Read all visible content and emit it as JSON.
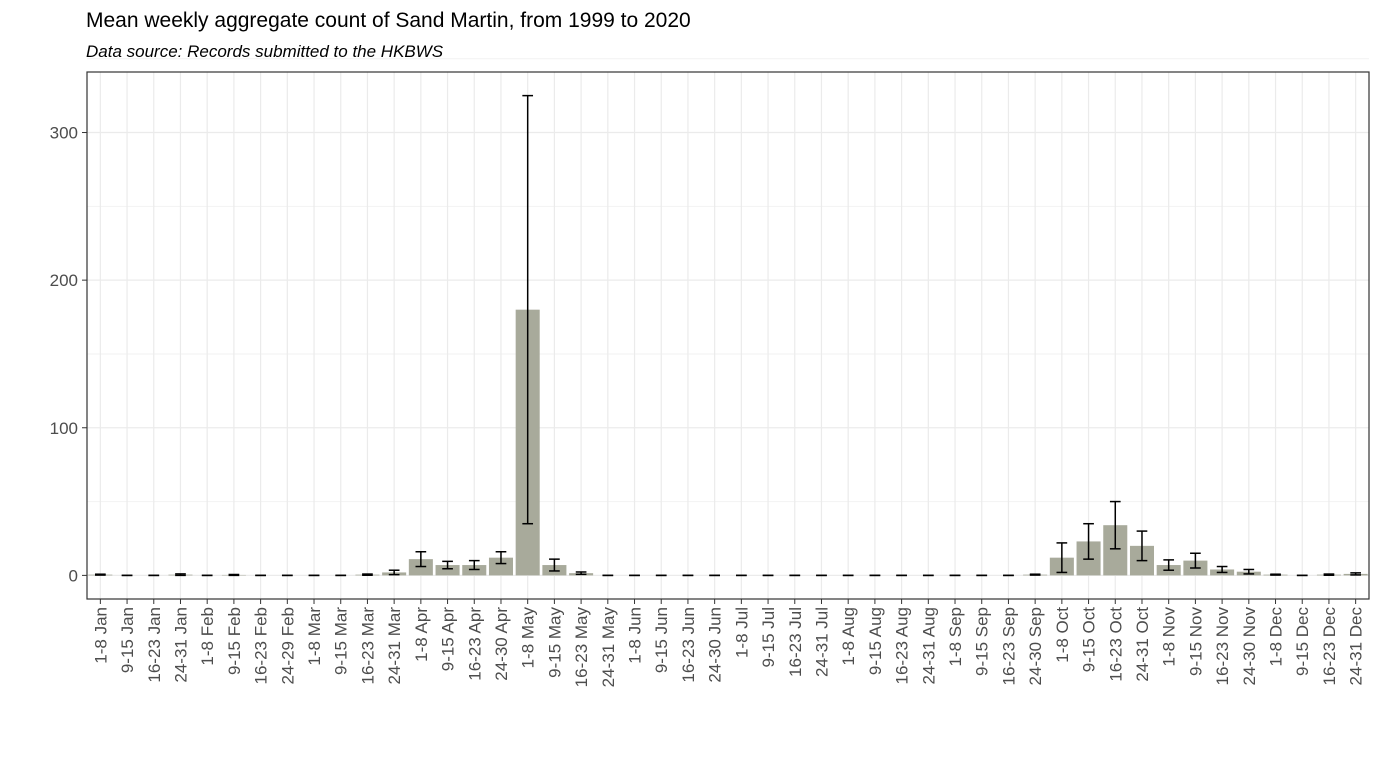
{
  "chart_data": {
    "type": "bar",
    "title": "Mean weekly aggregate count of Sand Martin, from 1999 to 2020",
    "subtitle": "Data source: Records submitted to the HKBWS",
    "categories": [
      "1-8 Jan",
      "9-15 Jan",
      "16-23 Jan",
      "24-31 Jan",
      "1-8 Feb",
      "9-15 Feb",
      "16-23 Feb",
      "24-29 Feb",
      "1-8 Mar",
      "9-15 Mar",
      "16-23 Mar",
      "24-31 Mar",
      "1-8 Apr",
      "9-15 Apr",
      "16-23 Apr",
      "24-30 Apr",
      "1-8 May",
      "9-15 May",
      "16-23 May",
      "24-31 May",
      "1-8 Jun",
      "9-15 Jun",
      "16-23 Jun",
      "24-30 Jun",
      "1-8 Jul",
      "9-15 Jul",
      "16-23 Jul",
      "24-31 Jul",
      "1-8 Aug",
      "9-15 Aug",
      "16-23 Aug",
      "24-31 Aug",
      "1-8 Sep",
      "9-15 Sep",
      "16-23 Sep",
      "24-30 Sep",
      "1-8 Oct",
      "9-15 Oct",
      "16-23 Oct",
      "24-31 Oct",
      "1-8 Nov",
      "9-15 Nov",
      "16-23 Nov",
      "24-30 Nov",
      "1-8 Dec",
      "9-15 Dec",
      "16-23 Dec",
      "24-31 Dec"
    ],
    "values": [
      0.5,
      0,
      0,
      0.5,
      0,
      0.3,
      0,
      0,
      0,
      0,
      0.5,
      2,
      11,
      7,
      7,
      12,
      180,
      7,
      1.5,
      0,
      0,
      0,
      0,
      0,
      0,
      0,
      0,
      0,
      0,
      0,
      0,
      0,
      0,
      0,
      0,
      0.5,
      12,
      23,
      34,
      20,
      7,
      10,
      4,
      2.5,
      0.5,
      0,
      0.5,
      1
    ],
    "errors": [
      0.3,
      0,
      0,
      0.5,
      0,
      0.3,
      0,
      0,
      0,
      0,
      0.4,
      1.5,
      5,
      2.5,
      3,
      4,
      145,
      4,
      0.8,
      0,
      0,
      0,
      0,
      0,
      0,
      0,
      0,
      0,
      0,
      0,
      0,
      0,
      0,
      0,
      0,
      0.3,
      10,
      12,
      16,
      10,
      3.5,
      5,
      2,
      1.5,
      0.3,
      0,
      0.4,
      0.7
    ],
    "color": "#a8aa9b",
    "ylim": [
      -16,
      341
    ],
    "yticks": [
      0,
      100,
      200,
      300
    ],
    "grid": true
  }
}
